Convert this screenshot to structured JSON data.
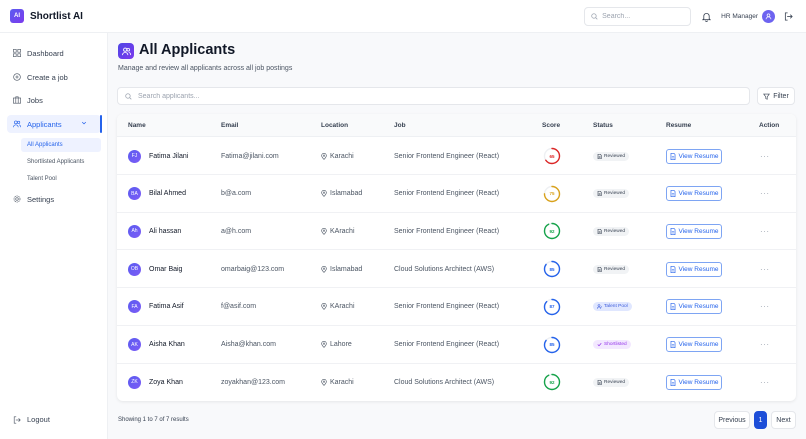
{
  "app": {
    "logo_text": "AI",
    "name": "Shortlist AI"
  },
  "topbar": {
    "search_placeholder": "Search...",
    "user_role": "HR Manager",
    "icons": [
      "search-icon",
      "bell-icon",
      "user-icon",
      "logout-icon"
    ]
  },
  "sidebar": {
    "items": [
      {
        "label": "Dashboard",
        "icon": "grid-icon"
      },
      {
        "label": "Create a job",
        "icon": "plus-circle-icon"
      },
      {
        "label": "Jobs",
        "icon": "briefcase-icon"
      },
      {
        "label": "Applicants",
        "icon": "users-icon",
        "active": true
      },
      {
        "label": "Settings",
        "icon": "gear-icon"
      }
    ],
    "subitems": [
      {
        "label": "All Applicants",
        "active": true
      },
      {
        "label": "Shortlisted Applicants"
      },
      {
        "label": "Talent Pool"
      }
    ],
    "logout_label": "Logout"
  },
  "page": {
    "title": "All Applicants",
    "subtitle": "Manage and review all applicants across all job postings",
    "search_placeholder": "Search applicants...",
    "filter_label": "Filter"
  },
  "table": {
    "headers": [
      "Name",
      "Email",
      "Location",
      "Job",
      "Score",
      "Status",
      "Resume",
      "Action"
    ],
    "resume_label": "View Resume",
    "action_label": "···",
    "rows": [
      {
        "initials": "FJ",
        "name": "Fatima Jilani",
        "email": "Fatima@jilani.com",
        "location": "Karachi",
        "job": "Senior Frontend Engineer (React)",
        "score": "65",
        "score_color": "#dc2626",
        "status": "Reviewed",
        "status_type": "reviewed"
      },
      {
        "initials": "BA",
        "name": "Bilal Ahmed",
        "email": "b@a.com",
        "location": "Islamabad",
        "job": "Senior Frontend Engineer (React)",
        "score": "75",
        "score_color": "#d9a21b",
        "status": "Reviewed",
        "status_type": "reviewed"
      },
      {
        "initials": "Ah",
        "name": "Ali hassan",
        "email": "a@h.com",
        "location": "KArachi",
        "job": "Senior Frontend Engineer (React)",
        "score": "92",
        "score_color": "#16a34a",
        "status": "Reviewed",
        "status_type": "reviewed"
      },
      {
        "initials": "OB",
        "name": "Omar Baig",
        "email": "omarbaig@123.com",
        "location": "Islamabad",
        "job": "Cloud Solutions Architect (AWS)",
        "score": "85",
        "score_color": "#2563eb",
        "status": "Reviewed",
        "status_type": "reviewed"
      },
      {
        "initials": "FA",
        "name": "Fatima Asif",
        "email": "f@asif.com",
        "location": "KArachi",
        "job": "Senior Frontend Engineer (React)",
        "score": "87",
        "score_color": "#2563eb",
        "status": "Talent Pool",
        "status_type": "talent"
      },
      {
        "initials": "AK",
        "name": "Aisha Khan",
        "email": "Aisha@khan.com",
        "location": "Lahore",
        "job": "Senior Frontend Engineer (React)",
        "score": "85",
        "score_color": "#2563eb",
        "status": "Shortlisted",
        "status_type": "short"
      },
      {
        "initials": "ZK",
        "name": "Zoya Khan",
        "email": "zoyakhan@123.com",
        "location": "Karachi",
        "job": "Cloud Solutions Architect (AWS)",
        "score": "92",
        "score_color": "#16a34a",
        "status": "Reviewed",
        "status_type": "reviewed"
      }
    ]
  },
  "pagination": {
    "summary": "Showing 1 to 7 of 7 results",
    "prev_label": "Previous",
    "current_page": "1",
    "next_label": "Next"
  }
}
